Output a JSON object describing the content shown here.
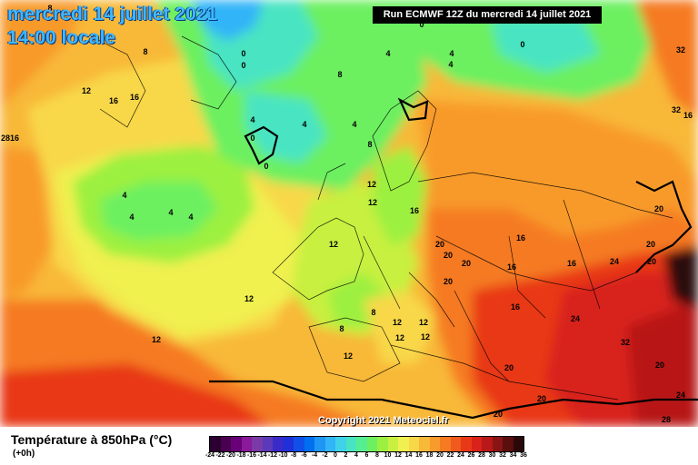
{
  "header": {
    "date": "mercredi 14 juillet 2021",
    "time": "14:00 locale",
    "run": "Run ECMWF 12Z du mercredi 14 juillet 2021"
  },
  "footer": {
    "variable": "Température à 850hPa (°C)",
    "forecast_hour": "(+0h)",
    "copyright": "Copyright 2021 Meteociel.fr"
  },
  "legend": {
    "ticks": [
      "-24",
      "-22",
      "-20",
      "-18",
      "-16",
      "-14",
      "-12",
      "-10",
      "-8",
      "-6",
      "-4",
      "-2",
      "0",
      "2",
      "4",
      "6",
      "8",
      "10",
      "12",
      "14",
      "16",
      "18",
      "20",
      "22",
      "24",
      "26",
      "28",
      "30",
      "32",
      "34",
      "36"
    ],
    "colors": [
      "#2b0030",
      "#4a0050",
      "#6a0077",
      "#8a1a9a",
      "#7a3aa8",
      "#5a3ab8",
      "#3a2ac8",
      "#2030d8",
      "#1050e8",
      "#0070f0",
      "#1e96f5",
      "#32b4f8",
      "#3fd2e8",
      "#48e4c2",
      "#55ee90",
      "#6cf060",
      "#9cf040",
      "#c8f040",
      "#f0f050",
      "#f8d848",
      "#f8b838",
      "#f89a2c",
      "#f57a22",
      "#f05a1c",
      "#e83818",
      "#d8221a",
      "#b81818",
      "#8a1414",
      "#5a0e0e",
      "#2a0808"
    ]
  },
  "map_labels": [
    {
      "v": "8"
    },
    {
      "v": "8"
    },
    {
      "v": "12"
    },
    {
      "v": "16"
    },
    {
      "v": "16"
    },
    {
      "v": "0"
    },
    {
      "v": "0"
    },
    {
      "v": "0"
    },
    {
      "v": "0"
    },
    {
      "v": "4"
    },
    {
      "v": "8"
    },
    {
      "v": "4"
    },
    {
      "v": "8"
    },
    {
      "v": "4"
    },
    {
      "v": "4"
    },
    {
      "v": "0"
    },
    {
      "v": "0"
    },
    {
      "v": "4"
    },
    {
      "v": "4"
    },
    {
      "v": "4"
    },
    {
      "v": "4"
    },
    {
      "v": "4"
    },
    {
      "v": "4"
    },
    {
      "v": "12"
    },
    {
      "v": "12"
    },
    {
      "v": "16"
    },
    {
      "v": "12"
    },
    {
      "v": "12"
    },
    {
      "v": "12"
    },
    {
      "v": "12"
    },
    {
      "v": "8"
    },
    {
      "v": "8"
    },
    {
      "v": "12"
    },
    {
      "v": "12"
    },
    {
      "v": "12"
    },
    {
      "v": "12"
    },
    {
      "v": "20"
    },
    {
      "v": "20"
    },
    {
      "v": "20"
    },
    {
      "v": "20"
    },
    {
      "v": "16"
    },
    {
      "v": "16"
    },
    {
      "v": "16"
    },
    {
      "v": "16"
    },
    {
      "v": "24"
    },
    {
      "v": "24"
    },
    {
      "v": "20"
    },
    {
      "v": "20"
    },
    {
      "v": "20"
    },
    {
      "v": "20"
    },
    {
      "v": "20"
    },
    {
      "v": "20"
    },
    {
      "v": "20"
    },
    {
      "v": "24"
    },
    {
      "v": "32"
    },
    {
      "v": "28"
    },
    {
      "v": "32"
    },
    {
      "v": "32"
    },
    {
      "v": "28"
    },
    {
      "v": "16"
    },
    {
      "v": "16"
    }
  ]
}
